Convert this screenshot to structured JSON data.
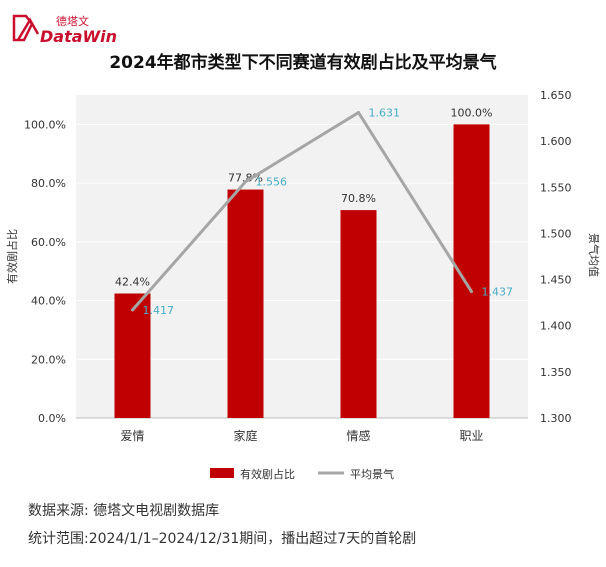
{
  "brand": {
    "cn": "德塔文",
    "en": "DataWin",
    "color": "#c8102e"
  },
  "chart_data": {
    "type": "bar",
    "title": "2024年都市类型下不同赛道有效剧占比及平均景气",
    "categories": [
      "爱情",
      "家庭",
      "情感",
      "职业"
    ],
    "series": [
      {
        "name": "有效剧占比",
        "type": "bar",
        "axis": "left",
        "values": [
          42.4,
          77.8,
          70.8,
          100.0
        ],
        "labels": [
          "42.4%",
          "77.8%",
          "70.8%",
          "100.0%"
        ],
        "color": "#c00000"
      },
      {
        "name": "平均景气",
        "type": "line",
        "axis": "right",
        "values": [
          1.417,
          1.556,
          1.631,
          1.437
        ],
        "labels": [
          "1.417",
          "1.556",
          "1.631",
          "1.437"
        ],
        "color": "#a6a6a6",
        "label_color": "#4bacc6"
      }
    ],
    "y_left": {
      "label": "有效剧占比",
      "lim": [
        0,
        110
      ],
      "ticks": [
        0,
        20,
        40,
        60,
        80,
        100
      ],
      "tick_labels": [
        "0.0%",
        "20.0%",
        "40.0%",
        "60.0%",
        "80.0%",
        "100.0%"
      ]
    },
    "y_right": {
      "label": "景气均值",
      "lim": [
        1.3,
        1.65
      ],
      "ticks": [
        1.3,
        1.35,
        1.4,
        1.45,
        1.5,
        1.55,
        1.6,
        1.65
      ],
      "tick_labels": [
        "1.300",
        "1.350",
        "1.400",
        "1.450",
        "1.500",
        "1.550",
        "1.600",
        "1.650"
      ]
    },
    "grid": true,
    "legend": "bottom",
    "plot_background": "#f2f2f2"
  },
  "notes": {
    "source": "数据来源: 德塔文电视剧数据库",
    "range": "统计范围:2024/1/1–2024/12/31期间，播出超过7天的首轮剧"
  }
}
